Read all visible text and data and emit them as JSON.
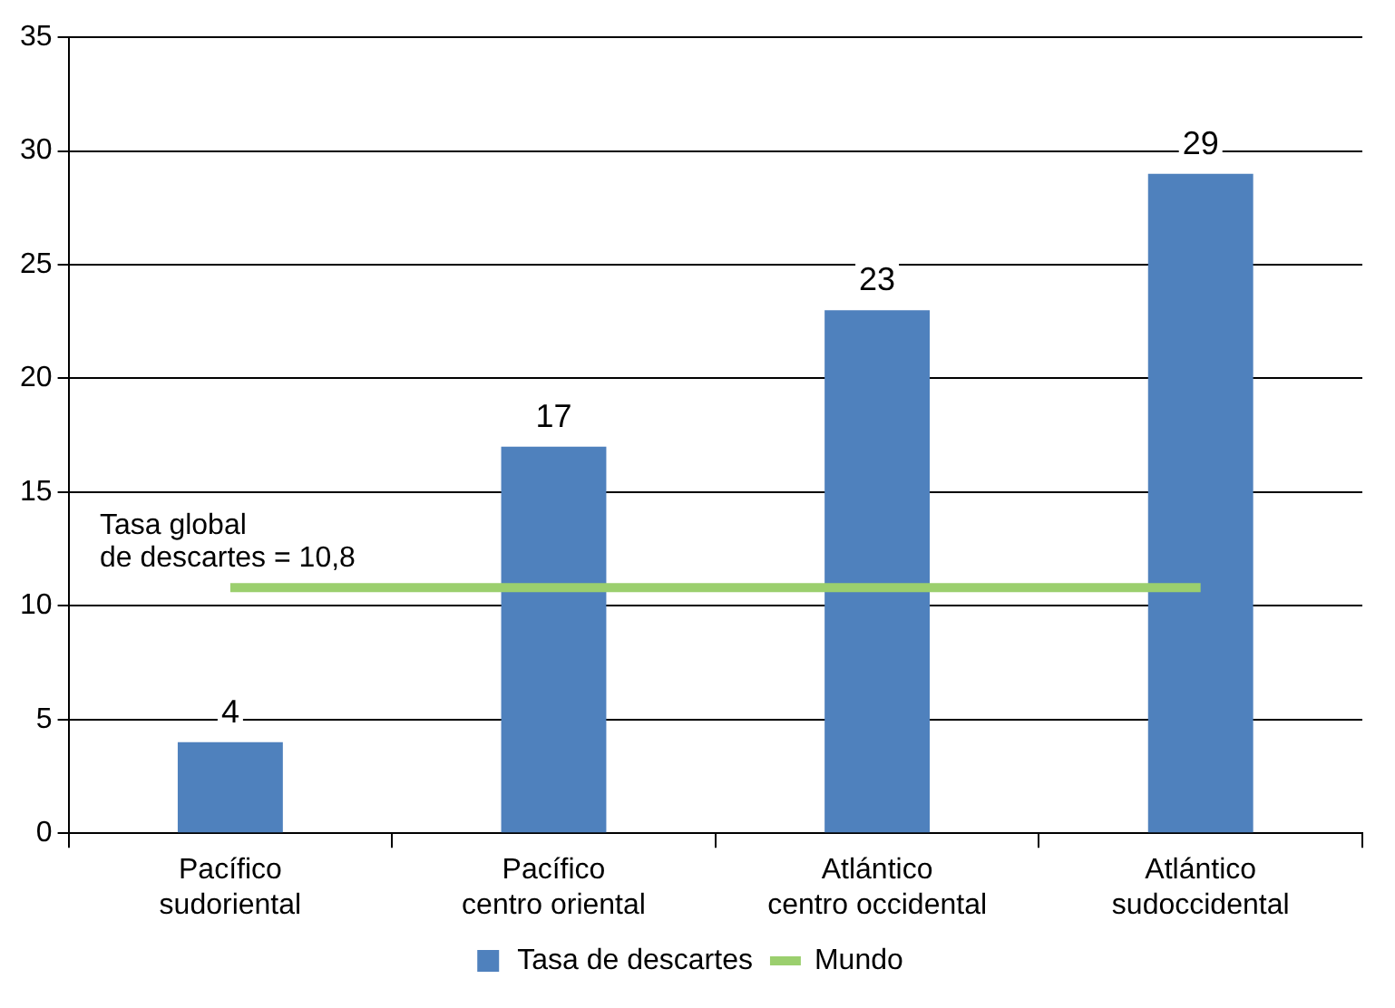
{
  "chart_data": {
    "type": "bar",
    "categories": [
      "Pacífico\nsudoriental",
      "Pacífico\ncentro oriental",
      "Atlántico\ncentro occidental",
      "Atlántico\nsudoccidental"
    ],
    "series": [
      {
        "name": "Tasa de descartes",
        "color": "#4f81bd",
        "values": [
          4,
          17,
          23,
          29
        ],
        "value_labels": [
          "4",
          "17",
          "23",
          "29"
        ]
      },
      {
        "name": "Mundo",
        "type": "line",
        "color": "#9bcf6e",
        "values": [
          10.8,
          10.8,
          10.8,
          10.8
        ]
      }
    ],
    "ylim": [
      0,
      35
    ],
    "yticks": [
      0,
      5,
      10,
      15,
      20,
      25,
      30,
      35
    ],
    "grid": "y",
    "legend": "bottom",
    "marker": "none",
    "annotations": [
      {
        "text": "Tasa global\nde descartes = 10,8",
        "x": "Pacífico\nsudoriental",
        "y": 10.8
      }
    ]
  }
}
